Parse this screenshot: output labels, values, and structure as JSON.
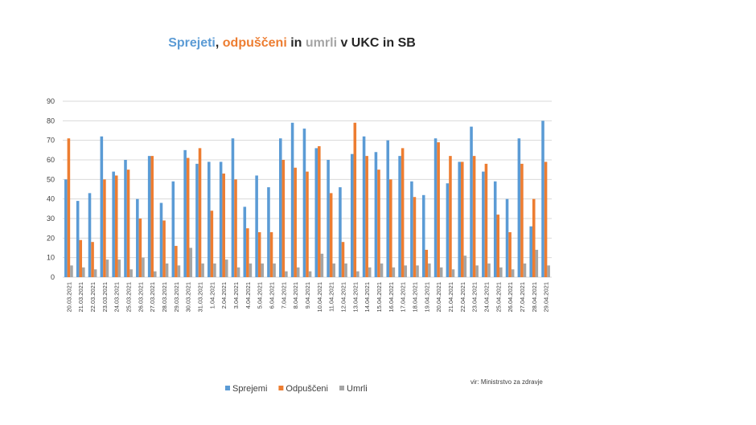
{
  "chart_data": {
    "type": "bar",
    "title_parts": [
      {
        "text": "Sprejeti",
        "color": "#5b9bd5"
      },
      {
        "text": ", ",
        "color": "#262626"
      },
      {
        "text": "odpuščeni",
        "color": "#ed7d31"
      },
      {
        "text": " in ",
        "color": "#262626"
      },
      {
        "text": "umrli",
        "color": "#a5a5a5"
      },
      {
        "text": " v UKC in SB",
        "color": "#262626"
      }
    ],
    "source": "vir: Ministrstvo za zdravje",
    "categories": [
      "20.03.2021",
      "21.03.2021",
      "22.03.2021",
      "23.03.2021",
      "24.03.2021",
      "25.03.2021",
      "26.03.2021",
      "27.03.2021",
      "28.03.2021",
      "29.03.2021",
      "30.03.2021",
      "31.03.2021",
      "1.04.2021",
      "2.04.2021",
      "3.04.2021",
      "4.04.2021",
      "5.04.2021",
      "6.04.2021",
      "7.04.2021",
      "8.04.2021",
      "9.04.2021",
      "10.04.2021",
      "11.04.2021",
      "12.04.2021",
      "13.04.2021",
      "14.04.2021",
      "15.04.2021",
      "16.04.2021",
      "17.04.2021",
      "18.04.2021",
      "19.04.2021",
      "20.04.2021",
      "21.04.2021",
      "22.04.2021",
      "23.04.2021",
      "24.04.2021",
      "25.04.2021",
      "26.04.2021",
      "27.04.2021",
      "28.04.2021",
      "29.04.2021"
    ],
    "series": [
      {
        "name": "Sprejemi",
        "color": "#5b9bd5",
        "values": [
          50,
          39,
          43,
          72,
          54,
          60,
          40,
          62,
          38,
          49,
          65,
          58,
          59,
          59,
          71,
          36,
          52,
          46,
          71,
          79,
          76,
          66,
          60,
          46,
          63,
          72,
          64,
          70,
          62,
          49,
          42,
          71,
          48,
          59,
          77,
          54,
          49,
          40,
          71,
          26,
          80
        ]
      },
      {
        "name": "Odpuščeni",
        "color": "#ed7d31",
        "values": [
          71,
          19,
          18,
          50,
          52,
          55,
          30,
          62,
          29,
          16,
          61,
          66,
          34,
          53,
          50,
          25,
          23,
          23,
          60,
          56,
          54,
          67,
          43,
          18,
          79,
          62,
          55,
          50,
          66,
          41,
          14,
          69,
          62,
          59,
          62,
          58,
          32,
          23,
          58,
          40,
          59
        ]
      },
      {
        "name": "Umrli",
        "color": "#a5a5a5",
        "values": [
          6,
          5,
          4,
          9,
          9,
          4,
          10,
          3,
          7,
          6,
          15,
          7,
          7,
          9,
          5,
          7,
          7,
          7,
          3,
          5,
          3,
          12,
          7,
          7,
          3,
          5,
          7,
          5,
          6,
          6,
          7,
          5,
          4,
          11,
          6,
          7,
          5,
          4,
          7,
          14,
          6
        ]
      }
    ],
    "ylim": [
      0,
      90
    ],
    "yticks": [
      0,
      10,
      20,
      30,
      40,
      50,
      60,
      70,
      80,
      90
    ],
    "grid": true
  }
}
